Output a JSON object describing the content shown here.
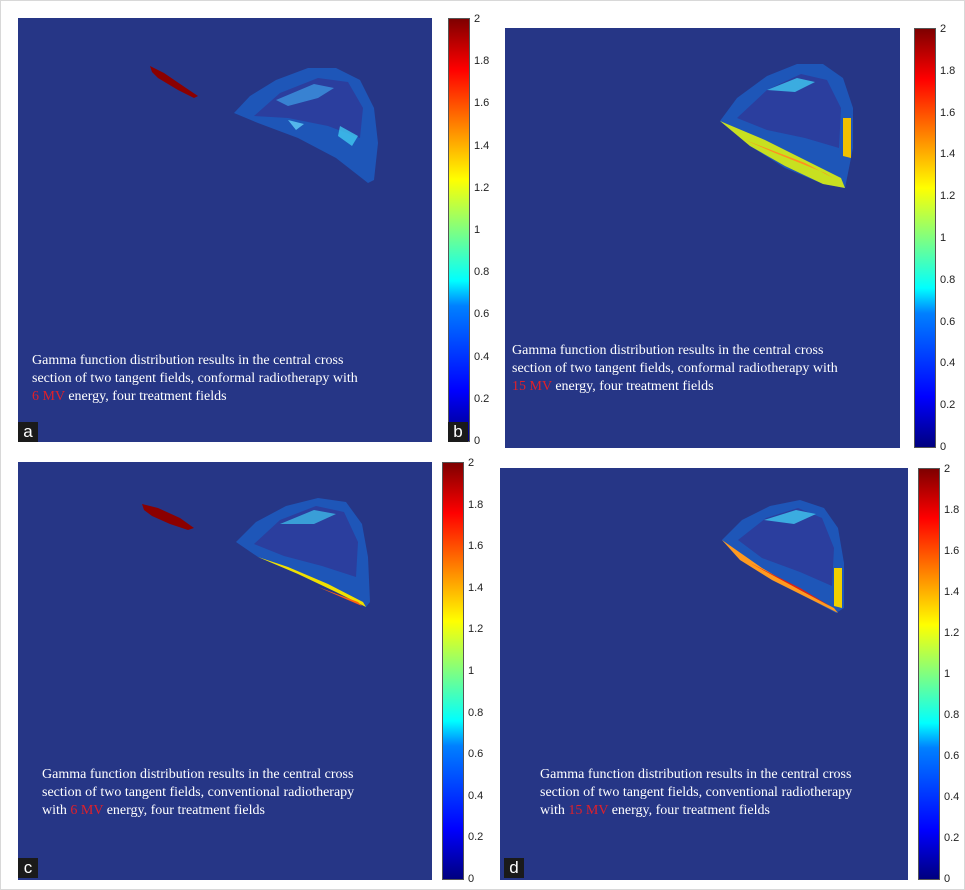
{
  "colorbar_ticks": [
    "2",
    "1.8",
    "1.6",
    "1.4",
    "1.2",
    "1",
    "0.8",
    "0.6",
    "0.4",
    "0.2",
    "0"
  ],
  "colorbar_range": [
    0,
    2
  ],
  "colormap": "jet",
  "background_color": "#263686",
  "highlight_color": "#e0202a",
  "panels": [
    {
      "letter": "a",
      "caption_line1": "Gamma function distribution results in the central cross",
      "caption_line2": "section of two tangent fields, conformal radiotherapy with",
      "caption_pre": "",
      "caption_highlight": "6 MV",
      "caption_post": " energy, four treatment fields"
    },
    {
      "letter": "b",
      "caption_line1": "Gamma function distribution results in the central cross",
      "caption_line2": "section of two tangent fields, conformal radiotherapy with",
      "caption_pre": "",
      "caption_highlight": "15 MV",
      "caption_post": " energy, four treatment fields"
    },
    {
      "letter": "c",
      "caption_line1": "Gamma function distribution results in the central cross",
      "caption_line2": "section of two tangent fields, conventional radiotherapy",
      "caption_pre": "with ",
      "caption_highlight": "6 MV",
      "caption_post": " energy, four treatment fields"
    },
    {
      "letter": "d",
      "caption_line1": "Gamma function distribution results in the central cross",
      "caption_line2": "section of two tangent fields, conventional radiotherapy",
      "caption_pre": "with ",
      "caption_highlight": "15 MV",
      "caption_post": " energy, four treatment fields"
    }
  ]
}
